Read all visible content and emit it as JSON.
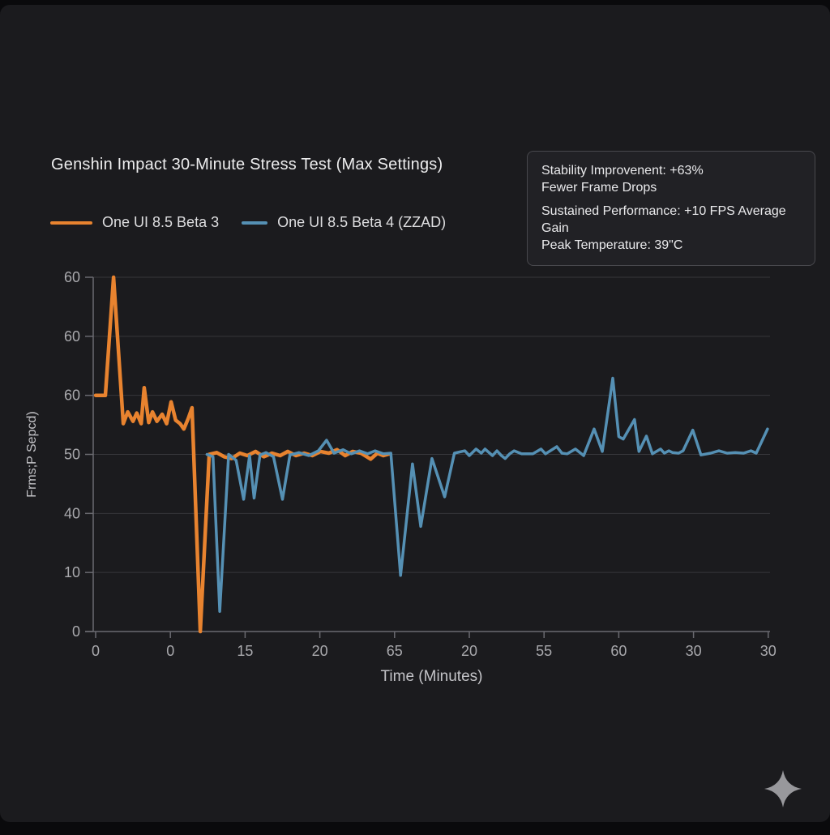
{
  "page": {
    "background": "#0a0a0c",
    "card_background": "#1b1b1e"
  },
  "header": {
    "title": "Genshin Impact 30-Minute Stress Test (Max Settings)"
  },
  "info_box": {
    "lines": [
      "Stability Improvenent: +63%",
      "Fewer Frame Drops",
      "Sustained Performance: +10 FPS Average Gain",
      "Peak Temperature: 39\"C"
    ]
  },
  "footer": {
    "sparkle_color": "#98989c"
  },
  "chart_data": {
    "type": "line",
    "title": "Genshin Impact 30-Minute Stress Test (Max Settings)",
    "xlabel": "Time (Minutes)",
    "ylabel": "Frms;P Sepcd)",
    "x_tick_labels": [
      "0",
      "0",
      "15",
      "20",
      "65",
      "20",
      "55",
      "60",
      "30",
      "30"
    ],
    "y_tick_labels_top_to_bottom": [
      "60",
      "60",
      "60",
      "50",
      "40",
      "10",
      "0"
    ],
    "grid": "horizontal gridlines only",
    "legend_position": "top-left above plot",
    "xlim": [
      0,
      9
    ],
    "ylim": [
      0,
      60
    ],
    "value_scale_note": "series values in axis units: bottom gridline = 0, each gridline step = 10, top gridline = 60; x in tick-index units 0-9",
    "colors": {
      "grid": "#37373b",
      "axis": "#6a6a70",
      "tick_text": "#a9a9ad",
      "axis_title_text": "#c3c3c7"
    },
    "series": [
      {
        "name": "One UI 8.5 Beta 3",
        "color": "#e8832f",
        "stroke_width": 4.5,
        "points": [
          [
            0,
            40
          ],
          [
            0.13,
            40
          ],
          [
            0.24,
            60
          ],
          [
            0.37,
            35.2
          ],
          [
            0.43,
            37.2
          ],
          [
            0.5,
            35.6
          ],
          [
            0.55,
            37
          ],
          [
            0.61,
            35.2
          ],
          [
            0.65,
            41.3
          ],
          [
            0.71,
            35.4
          ],
          [
            0.76,
            37.2
          ],
          [
            0.82,
            35.6
          ],
          [
            0.89,
            36.8
          ],
          [
            0.95,
            35.2
          ],
          [
            1.01,
            38.9
          ],
          [
            1.07,
            35.8
          ],
          [
            1.13,
            35.2
          ],
          [
            1.18,
            34.3
          ],
          [
            1.24,
            36.1
          ],
          [
            1.29,
            37.9
          ],
          [
            1.4,
            0
          ],
          [
            1.52,
            30
          ],
          [
            1.62,
            30.3
          ],
          [
            1.72,
            29.6
          ],
          [
            1.82,
            29.3
          ],
          [
            1.93,
            30.2
          ],
          [
            2.03,
            29.8
          ],
          [
            2.14,
            30.5
          ],
          [
            2.25,
            29.6
          ],
          [
            2.36,
            30.2
          ],
          [
            2.47,
            29.8
          ],
          [
            2.57,
            30.5
          ],
          [
            2.68,
            29.8
          ],
          [
            2.79,
            30.2
          ],
          [
            2.9,
            29.8
          ],
          [
            3.01,
            30.5
          ],
          [
            3.12,
            30.2
          ],
          [
            3.23,
            30.8
          ],
          [
            3.34,
            29.8
          ],
          [
            3.44,
            30.5
          ],
          [
            3.55,
            30.2
          ],
          [
            3.68,
            29.2
          ],
          [
            3.77,
            30.2
          ],
          [
            3.85,
            29.8
          ],
          [
            3.93,
            30.1
          ]
        ]
      },
      {
        "name": "One UI 8.5 Beta 4 (ZZAD)",
        "color": "#5590b4",
        "stroke_width": 3.5,
        "points": [
          [
            1.49,
            30
          ],
          [
            1.57,
            29.6
          ],
          [
            1.66,
            3.4
          ],
          [
            1.78,
            30
          ],
          [
            1.88,
            29
          ],
          [
            1.98,
            22.4
          ],
          [
            2.06,
            29.8
          ],
          [
            2.12,
            22.6
          ],
          [
            2.2,
            29.9
          ],
          [
            2.28,
            30.3
          ],
          [
            2.38,
            29.6
          ],
          [
            2.5,
            22.4
          ],
          [
            2.6,
            29.9
          ],
          [
            2.72,
            30.3
          ],
          [
            2.85,
            29.8
          ],
          [
            2.98,
            30.6
          ],
          [
            3.09,
            32.4
          ],
          [
            3.19,
            30.2
          ],
          [
            3.31,
            30.8
          ],
          [
            3.42,
            30.1
          ],
          [
            3.53,
            30.6
          ],
          [
            3.64,
            30.1
          ],
          [
            3.74,
            30.6
          ],
          [
            3.85,
            30.1
          ],
          [
            3.95,
            30.2
          ],
          [
            4.08,
            9.5
          ],
          [
            4.24,
            28.4
          ],
          [
            4.35,
            17.8
          ],
          [
            4.5,
            29.3
          ],
          [
            4.67,
            22.8
          ],
          [
            4.8,
            30.2
          ],
          [
            4.94,
            30.6
          ],
          [
            5,
            29.8
          ],
          [
            5.09,
            30.9
          ],
          [
            5.16,
            30.2
          ],
          [
            5.21,
            30.9
          ],
          [
            5.31,
            29.8
          ],
          [
            5.37,
            30.6
          ],
          [
            5.43,
            29.8
          ],
          [
            5.48,
            29.3
          ],
          [
            5.54,
            30.1
          ],
          [
            5.6,
            30.6
          ],
          [
            5.7,
            30.1
          ],
          [
            5.85,
            30.1
          ],
          [
            5.96,
            30.9
          ],
          [
            6.02,
            30.1
          ],
          [
            6.17,
            31.3
          ],
          [
            6.24,
            30.2
          ],
          [
            6.31,
            30.1
          ],
          [
            6.42,
            30.9
          ],
          [
            6.53,
            29.8
          ],
          [
            6.67,
            34.3
          ],
          [
            6.78,
            30.5
          ],
          [
            6.92,
            42.9
          ],
          [
            7,
            33
          ],
          [
            7.06,
            32.6
          ],
          [
            7.21,
            35.9
          ],
          [
            7.27,
            30.5
          ],
          [
            7.37,
            33.1
          ],
          [
            7.45,
            30.1
          ],
          [
            7.56,
            30.9
          ],
          [
            7.61,
            30.2
          ],
          [
            7.67,
            30.6
          ],
          [
            7.72,
            30.3
          ],
          [
            7.8,
            30.2
          ],
          [
            7.86,
            30.6
          ],
          [
            7.99,
            34.1
          ],
          [
            8.1,
            29.9
          ],
          [
            8.23,
            30.2
          ],
          [
            8.34,
            30.6
          ],
          [
            8.45,
            30.2
          ],
          [
            8.56,
            30.3
          ],
          [
            8.67,
            30.2
          ],
          [
            8.77,
            30.6
          ],
          [
            8.84,
            30.2
          ],
          [
            8.99,
            34.3
          ]
        ]
      }
    ]
  }
}
